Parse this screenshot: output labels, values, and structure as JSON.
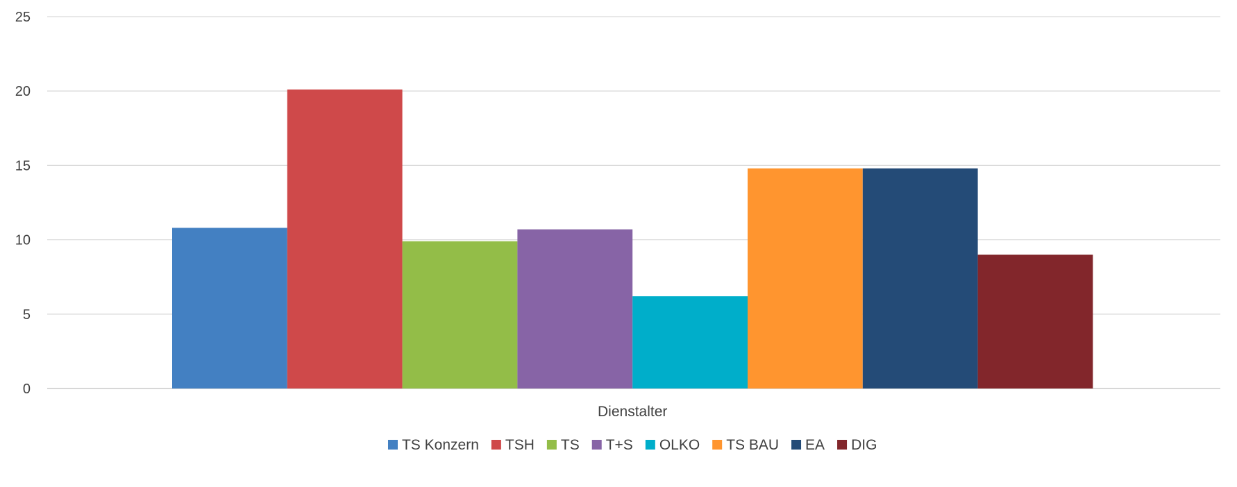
{
  "chart_data": {
    "type": "bar",
    "categories": [
      "Dienstalter"
    ],
    "xlabel": "",
    "ylabel": "",
    "ylim": [
      0,
      25
    ],
    "yticks": [
      0,
      5,
      10,
      15,
      20,
      25
    ],
    "grid": true,
    "legend": "bottom",
    "series": [
      {
        "name": "TS Konzern",
        "values": [
          10.8
        ],
        "color": "#4380C2"
      },
      {
        "name": "TSH",
        "values": [
          20.1
        ],
        "color": "#CF494A"
      },
      {
        "name": "TS",
        "values": [
          9.9
        ],
        "color": "#93BD48"
      },
      {
        "name": "T+S",
        "values": [
          10.7
        ],
        "color": "#8764A6"
      },
      {
        "name": "OLKO",
        "values": [
          6.2
        ],
        "color": "#00AECA"
      },
      {
        "name": "TS BAU",
        "values": [
          14.8
        ],
        "color": "#FF952F"
      },
      {
        "name": "EA",
        "values": [
          14.8
        ],
        "color": "#244B77"
      },
      {
        "name": "DIG",
        "values": [
          9.0
        ],
        "color": "#82262B"
      }
    ]
  }
}
